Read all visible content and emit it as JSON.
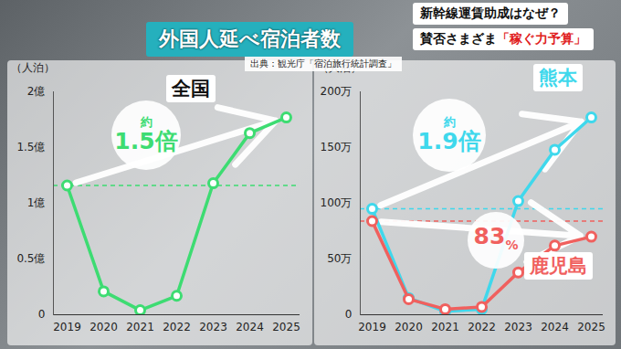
{
  "title": "外国人延べ宿泊者数",
  "source": "出典：観光庁「宿泊旅行統計調査」",
  "headline": {
    "line1": "新幹線運賃助成はなぜ？",
    "line2": [
      "賛否さまざま",
      "「稼ぐ力予算」"
    ]
  },
  "chart_data": [
    {
      "type": "line",
      "y_label": "（人泊）",
      "categories": [
        "2019",
        "2020",
        "2021",
        "2022",
        "2023",
        "2024",
        "2025"
      ],
      "ylim": [
        0,
        200000000
      ],
      "yticks": [
        0,
        {
          "value": 50000000,
          "label": "0.5億"
        },
        {
          "value": 100000000,
          "label": "1億"
        },
        {
          "value": 150000000,
          "label": "1.5億"
        },
        {
          "value": 200000000,
          "label": "2億"
        }
      ],
      "grid": false,
      "marker": "circle",
      "series": [
        {
          "name": "全国",
          "color": "#3ddc72",
          "values": [
            116000000,
            21000000,
            4000000,
            17000000,
            118000000,
            163000000,
            177000000
          ]
        }
      ],
      "annotations": [
        {
          "series": "全国",
          "prefix": "約",
          "text": "1.5倍"
        }
      ]
    },
    {
      "type": "line",
      "y_label": "（人泊）",
      "categories": [
        "2019",
        "2020",
        "2021",
        "2022",
        "2023",
        "2024",
        "2025"
      ],
      "ylim": [
        0,
        2000000
      ],
      "yticks": [
        0,
        {
          "value": 500000,
          "label": "50万"
        },
        {
          "value": 1000000,
          "label": "100万"
        },
        {
          "value": 1500000,
          "label": "150万"
        },
        {
          "value": 2000000,
          "label": "200万"
        }
      ],
      "grid": false,
      "marker": "circle",
      "series": [
        {
          "name": "熊本",
          "color": "#3fd8ec",
          "values": [
            950000,
            150000,
            30000,
            50000,
            1020000,
            1480000,
            1770000
          ]
        },
        {
          "name": "鹿児島",
          "color": "#f0605e",
          "values": [
            840000,
            140000,
            50000,
            70000,
            380000,
            620000,
            700000
          ]
        }
      ],
      "annotations": [
        {
          "series": "熊本",
          "prefix": "約",
          "text": "1.9倍"
        },
        {
          "series": "鹿児島",
          "text": "83",
          "unit": "%"
        }
      ]
    }
  ]
}
